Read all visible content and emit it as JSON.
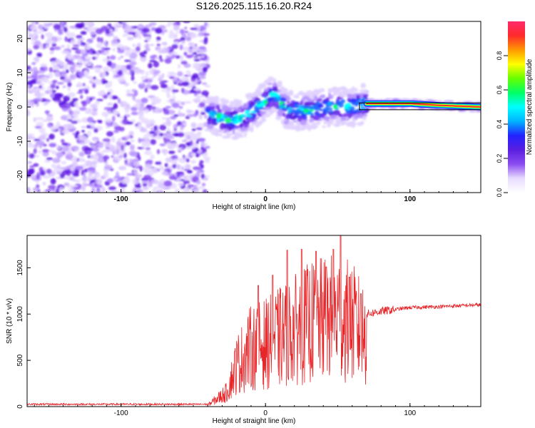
{
  "title": "S126.2025.115.16.20.R24",
  "chart_data": [
    {
      "type": "heatmap",
      "xlabel": "Height of straight line (km)",
      "ylabel": "Frequency (Hz)",
      "xlim": [
        -165,
        149
      ],
      "ylim": [
        -25,
        25
      ],
      "xticks": [
        -100,
        0,
        100
      ],
      "yticks": [
        -20,
        -10,
        0,
        10,
        20
      ],
      "colorbar": {
        "label": "Normalized spectral amplitude",
        "range": [
          0,
          1
        ],
        "ticks": [
          0.0,
          0.2,
          0.4,
          0.6,
          0.8
        ],
        "colors": [
          "#ffffff",
          "#e8dcff",
          "#8a4cf0",
          "#5a1fe0",
          "#2222ff",
          "#00b4ff",
          "#00ffff",
          "#00ff66",
          "#66ff00",
          "#ffff00",
          "#ff9900",
          "#ff2a2a",
          "#ff2a6a"
        ]
      },
      "regions": [
        {
          "description": "noise",
          "x_range": [
            -165,
            -40
          ],
          "y_range": [
            -25,
            25
          ]
        },
        {
          "description": "signal",
          "x_range": [
            -40,
            70
          ],
          "center_freq": [
            [
              -40,
              -2
            ],
            [
              -25,
              -4
            ],
            [
              -15,
              -3
            ],
            [
              0,
              2
            ],
            [
              5,
              4
            ],
            [
              15,
              -1
            ],
            [
              30,
              -1
            ],
            [
              45,
              0
            ],
            [
              60,
              0
            ],
            [
              70,
              1
            ]
          ]
        },
        {
          "description": "steady tone",
          "x_range": [
            70,
            149
          ],
          "center_freq": [
            [
              70,
              1
            ],
            [
              100,
              1
            ],
            [
              120,
              0.5
            ],
            [
              149,
              0
            ]
          ]
        }
      ]
    },
    {
      "type": "line",
      "xlabel": "Height of straight line (km)",
      "ylabel": "SNR (10 * v/v)",
      "xlim": [
        -165,
        149
      ],
      "ylim": [
        0,
        1850
      ],
      "xticks": [
        -100,
        0,
        100
      ],
      "yticks": [
        0,
        500,
        1000,
        1500
      ],
      "color": "#e8262a",
      "envelope_points": [
        {
          "x": -165,
          "y": 25
        },
        {
          "x": -40,
          "y": 25
        },
        {
          "x": -27,
          "y": 200
        },
        {
          "x": -20,
          "y": 600
        },
        {
          "x": -10,
          "y": 850
        },
        {
          "x": 0,
          "y": 900
        },
        {
          "x": 10,
          "y": 1000
        },
        {
          "x": 20,
          "y": 1100
        },
        {
          "x": 30,
          "y": 1200
        },
        {
          "x": 40,
          "y": 1250
        },
        {
          "x": 50,
          "y": 1300
        },
        {
          "x": 60,
          "y": 1200
        },
        {
          "x": 70,
          "y": 1000
        },
        {
          "x": 80,
          "y": 1030
        },
        {
          "x": 90,
          "y": 1050
        },
        {
          "x": 100,
          "y": 1070
        },
        {
          "x": 120,
          "y": 1080
        },
        {
          "x": 149,
          "y": 1100
        }
      ],
      "peaks": [
        {
          "x": -5,
          "y": 1310
        },
        {
          "x": 5,
          "y": 1420
        },
        {
          "x": 15,
          "y": 1690
        },
        {
          "x": 25,
          "y": 1700
        },
        {
          "x": 35,
          "y": 1680
        },
        {
          "x": 42,
          "y": 1510
        },
        {
          "x": 47,
          "y": 1700
        },
        {
          "x": 52,
          "y": 1850
        },
        {
          "x": 58,
          "y": 1400
        },
        {
          "x": 66,
          "y": 1220
        }
      ]
    }
  ]
}
